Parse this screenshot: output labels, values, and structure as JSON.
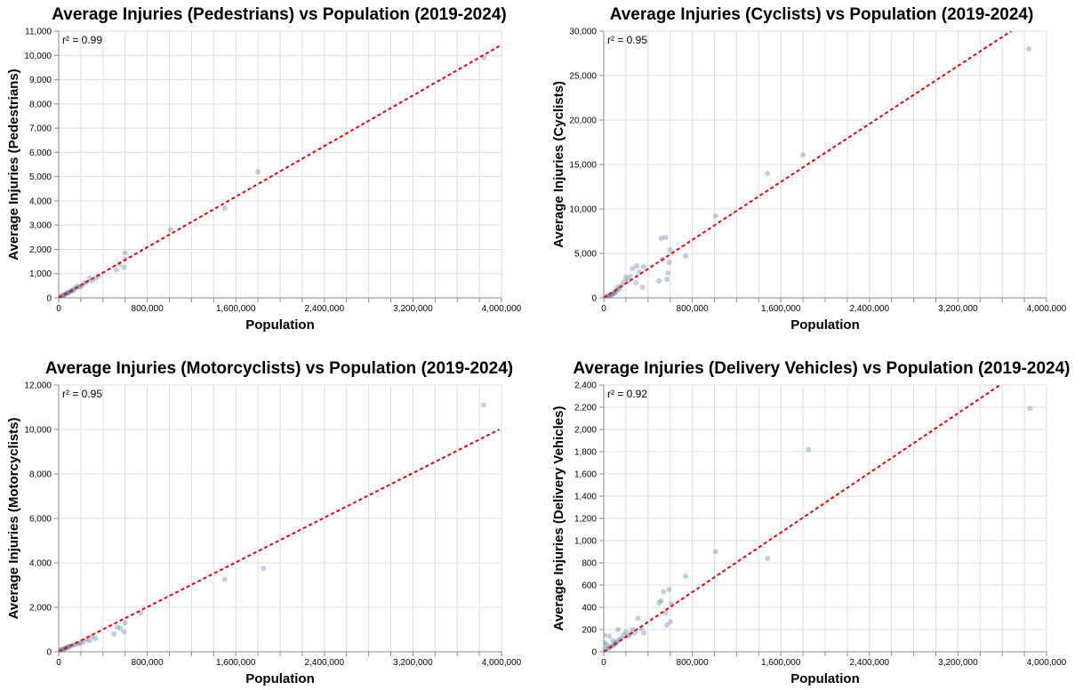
{
  "colors": {
    "point": "#4c78a8",
    "trend": "#ee0000",
    "grid": "#dddddd",
    "axis": "#888888"
  },
  "chart_data": [
    {
      "type": "scatter",
      "title": "Average Injuries (Pedestrians) vs Population (2019-2024)",
      "xlabel": "Population",
      "ylabel": "Average Injuries (Pedestrians)",
      "r2_label": "r² = 0.99",
      "xlim": [
        0,
        4000000
      ],
      "ylim": [
        0,
        11000
      ],
      "x_ticks": [
        0,
        800000,
        1600000,
        2400000,
        3200000,
        4000000
      ],
      "x_grid_step": 200000,
      "y_ticks": [
        0,
        1000,
        2000,
        3000,
        4000,
        5000,
        6000,
        7000,
        8000,
        9000,
        10000,
        11000
      ],
      "grid": true,
      "trend_line": {
        "x": [
          0,
          3980000
        ],
        "y": [
          0,
          10380
        ]
      },
      "points": [
        [
          3840000,
          9900
        ],
        [
          1800000,
          5200
        ],
        [
          1500000,
          3700
        ],
        [
          1010000,
          2820
        ],
        [
          600000,
          1850
        ],
        [
          600000,
          1600
        ],
        [
          590000,
          1250
        ],
        [
          550000,
          1400
        ],
        [
          520000,
          1150
        ],
        [
          360000,
          900
        ],
        [
          330000,
          800
        ],
        [
          300000,
          700
        ],
        [
          280000,
          820
        ],
        [
          250000,
          650
        ],
        [
          230000,
          600
        ],
        [
          210000,
          500
        ],
        [
          190000,
          450
        ],
        [
          170000,
          480
        ],
        [
          160000,
          420
        ],
        [
          140000,
          380
        ],
        [
          130000,
          300
        ],
        [
          120000,
          310
        ],
        [
          110000,
          280
        ],
        [
          100000,
          250
        ],
        [
          90000,
          220
        ],
        [
          80000,
          200
        ],
        [
          70000,
          180
        ],
        [
          60000,
          150
        ],
        [
          50000,
          120
        ],
        [
          40000,
          100
        ],
        [
          30000,
          80
        ],
        [
          20000,
          50
        ],
        [
          10000,
          30
        ],
        [
          5000,
          20
        ]
      ]
    },
    {
      "type": "scatter",
      "title": "Average Injuries (Cyclists) vs Population (2019-2024)",
      "xlabel": "Population",
      "ylabel": "Average Injuries (Cyclists)",
      "r2_label": "r² = 0.95",
      "xlim": [
        0,
        4000000
      ],
      "ylim": [
        0,
        30000
      ],
      "x_ticks": [
        0,
        800000,
        1600000,
        2400000,
        3200000,
        4000000
      ],
      "x_grid_step": 200000,
      "y_ticks": [
        0,
        5000,
        10000,
        15000,
        20000,
        25000,
        30000
      ],
      "grid": true,
      "trend_line": {
        "x": [
          0,
          3680000
        ],
        "y": [
          0,
          30000
        ]
      },
      "points": [
        [
          3840000,
          28000
        ],
        [
          1800000,
          16100
        ],
        [
          1480000,
          14000
        ],
        [
          1010000,
          9200
        ],
        [
          740000,
          4700
        ],
        [
          600000,
          5400
        ],
        [
          590000,
          4000
        ],
        [
          580000,
          2800
        ],
        [
          570000,
          2100
        ],
        [
          560000,
          6800
        ],
        [
          520000,
          6700
        ],
        [
          530000,
          4300
        ],
        [
          500000,
          1900
        ],
        [
          360000,
          3500
        ],
        [
          350000,
          1200
        ],
        [
          320000,
          2900
        ],
        [
          300000,
          3600
        ],
        [
          290000,
          1700
        ],
        [
          260000,
          3300
        ],
        [
          240000,
          2400
        ],
        [
          220000,
          1900
        ],
        [
          200000,
          2300
        ],
        [
          180000,
          1800
        ],
        [
          160000,
          1400
        ],
        [
          140000,
          1000
        ],
        [
          130000,
          1200
        ],
        [
          120000,
          900
        ],
        [
          110000,
          700
        ],
        [
          100000,
          600
        ],
        [
          90000,
          500
        ],
        [
          80000,
          450
        ],
        [
          70000,
          400
        ],
        [
          60000,
          300
        ],
        [
          50000,
          250
        ],
        [
          40000,
          200
        ],
        [
          30000,
          150
        ],
        [
          20000,
          100
        ],
        [
          10000,
          50
        ]
      ]
    },
    {
      "type": "scatter",
      "title": "Average Injuries (Motorcyclists) vs Population (2019-2024)",
      "xlabel": "Population",
      "ylabel": "Average Injuries (Motorcyclists)",
      "r2_label": "r² = 0.95",
      "xlim": [
        0,
        4000000
      ],
      "ylim": [
        0,
        12000
      ],
      "x_ticks": [
        0,
        800000,
        1600000,
        2400000,
        3200000,
        4000000
      ],
      "x_grid_step": 200000,
      "y_ticks": [
        0,
        2000,
        4000,
        6000,
        8000,
        10000,
        12000
      ],
      "grid": true,
      "trend_line": {
        "x": [
          0,
          3980000
        ],
        "y": [
          0,
          10000
        ]
      },
      "points": [
        [
          3840000,
          11100
        ],
        [
          1850000,
          3750
        ],
        [
          1500000,
          3250
        ],
        [
          740000,
          1750
        ],
        [
          600000,
          1300
        ],
        [
          590000,
          900
        ],
        [
          560000,
          1050
        ],
        [
          530000,
          1100
        ],
        [
          500000,
          800
        ],
        [
          330000,
          600
        ],
        [
          300000,
          700
        ],
        [
          280000,
          500
        ],
        [
          250000,
          550
        ],
        [
          220000,
          450
        ],
        [
          200000,
          400
        ],
        [
          180000,
          350
        ],
        [
          160000,
          380
        ],
        [
          140000,
          320
        ],
        [
          120000,
          280
        ],
        [
          100000,
          250
        ],
        [
          90000,
          220
        ],
        [
          80000,
          200
        ],
        [
          70000,
          180
        ],
        [
          60000,
          160
        ],
        [
          50000,
          140
        ],
        [
          40000,
          120
        ],
        [
          30000,
          100
        ],
        [
          20000,
          80
        ],
        [
          10000,
          60
        ],
        [
          5000,
          40
        ]
      ]
    },
    {
      "type": "scatter",
      "title": "Average Injuries (Delivery Vehicles) vs Population (2019-2024)",
      "xlabel": "Population",
      "ylabel": "Average Injuries (Delivery Vehicles)",
      "r2_label": "r² = 0.92",
      "xlim": [
        0,
        4000000
      ],
      "ylim": [
        0,
        2400
      ],
      "x_ticks": [
        0,
        800000,
        1600000,
        2400000,
        3200000,
        4000000
      ],
      "x_grid_step": 200000,
      "y_ticks": [
        0,
        200,
        400,
        600,
        800,
        1000,
        1200,
        1400,
        1600,
        1800,
        2000,
        2200,
        2400
      ],
      "grid": true,
      "trend_line": {
        "x": [
          0,
          3580000
        ],
        "y": [
          0,
          2400
        ]
      },
      "points": [
        [
          3850000,
          2190
        ],
        [
          1850000,
          1820
        ],
        [
          1480000,
          840
        ],
        [
          1010000,
          900
        ],
        [
          740000,
          680
        ],
        [
          610000,
          430
        ],
        [
          600000,
          270
        ],
        [
          590000,
          560
        ],
        [
          570000,
          240
        ],
        [
          560000,
          350
        ],
        [
          540000,
          540
        ],
        [
          520000,
          460
        ],
        [
          500000,
          440
        ],
        [
          360000,
          170
        ],
        [
          340000,
          210
        ],
        [
          310000,
          300
        ],
        [
          280000,
          170
        ],
        [
          260000,
          200
        ],
        [
          240000,
          160
        ],
        [
          220000,
          140
        ],
        [
          200000,
          180
        ],
        [
          180000,
          150
        ],
        [
          160000,
          120
        ],
        [
          140000,
          110
        ],
        [
          130000,
          200
        ],
        [
          120000,
          90
        ],
        [
          110000,
          80
        ],
        [
          100000,
          70
        ],
        [
          90000,
          60
        ],
        [
          80000,
          100
        ],
        [
          70000,
          50
        ],
        [
          60000,
          40
        ],
        [
          50000,
          140
        ],
        [
          40000,
          30
        ],
        [
          30000,
          60
        ],
        [
          20000,
          20
        ],
        [
          10000,
          80
        ],
        [
          5000,
          150
        ]
      ]
    }
  ]
}
